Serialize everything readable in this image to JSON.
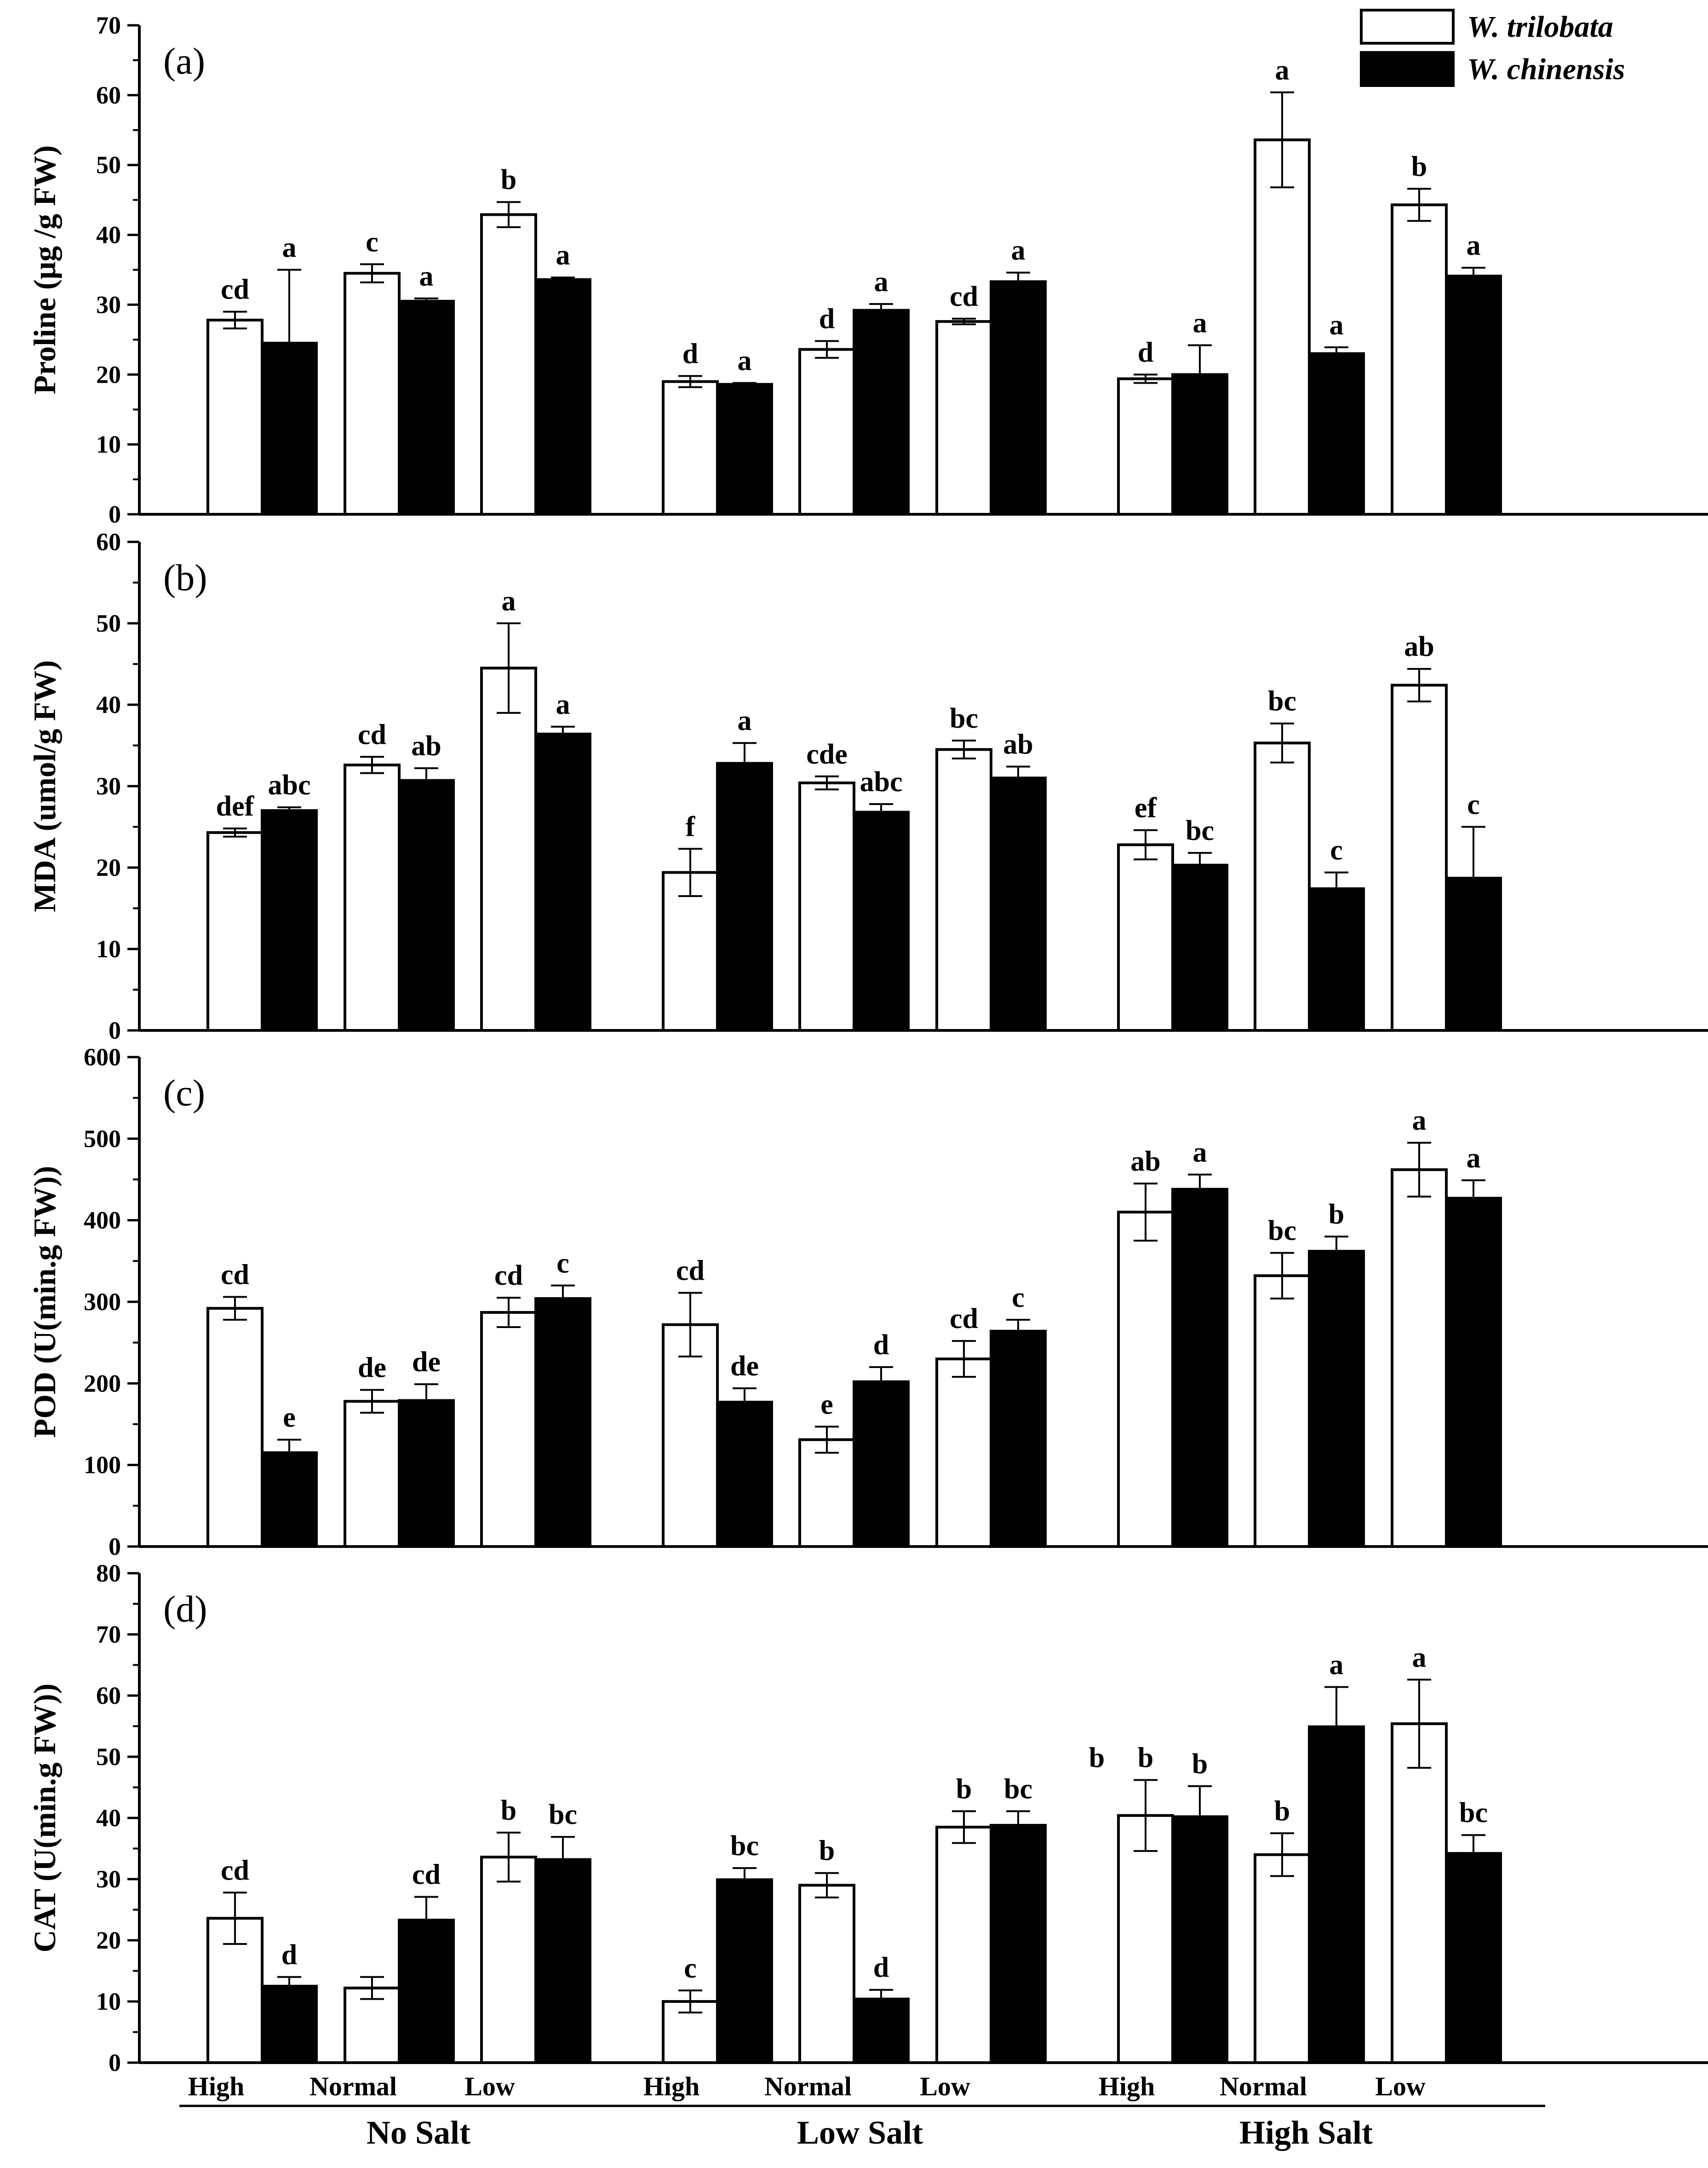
{
  "chart_data": {
    "type": "bar",
    "layout": "four vertically stacked panels sharing x axis",
    "legend": {
      "placement": "top-right",
      "entries": [
        {
          "name": "W. trilobata",
          "fill": "#ffffff"
        },
        {
          "name": "W. chinensis",
          "fill": "#000000"
        }
      ]
    },
    "categories": [
      "High",
      "Normal",
      "Low",
      "High",
      "Normal",
      "Low",
      "High",
      "Normal",
      "Low"
    ],
    "groups": [
      {
        "label": "No Salt",
        "categories": [
          "High",
          "Normal",
          "Low"
        ]
      },
      {
        "label": "Low Salt",
        "categories": [
          "High",
          "Normal",
          "Low"
        ]
      },
      {
        "label": "High Salt",
        "categories": [
          "High",
          "Normal",
          "Low"
        ]
      }
    ],
    "panels": [
      {
        "panel_label": "(a)",
        "ylabel": "Proline (μg /g FW)",
        "ylim": [
          0,
          70
        ],
        "yticks": [
          0,
          10,
          20,
          30,
          40,
          50,
          60,
          70
        ],
        "series": [
          {
            "name": "W. trilobata",
            "values": [
              27.8,
              34.5,
              42.9,
              19.0,
              23.6,
              27.6,
              19.4,
              53.6,
              44.3
            ],
            "errors": [
              1.2,
              1.3,
              1.8,
              0.8,
              1.2,
              0.4,
              0.6,
              6.8,
              2.3
            ],
            "letters": [
              "cd",
              "c",
              "b",
              "d",
              "d",
              "cd",
              "d",
              "a",
              "b"
            ]
          },
          {
            "name": "W. chinensis",
            "values": [
              24.5,
              30.5,
              33.6,
              18.6,
              29.2,
              33.3,
              20.0,
              23.0,
              34.1
            ],
            "errors": [
              10.5,
              0.4,
              0.3,
              0.2,
              0.9,
              1.3,
              4.2,
              0.9,
              1.2
            ],
            "letters": [
              "a",
              "a",
              "a",
              "a",
              "a",
              "a",
              "a",
              "a",
              "a"
            ]
          }
        ]
      },
      {
        "panel_label": "(b)",
        "ylabel": "MDA (umol/g FW)",
        "ylim": [
          0,
          60
        ],
        "yticks": [
          0,
          10,
          20,
          30,
          40,
          50,
          60
        ],
        "series": [
          {
            "name": "W. trilobata",
            "values": [
              24.3,
              32.6,
              44.5,
              19.4,
              30.4,
              34.5,
              22.8,
              35.3,
              42.4
            ],
            "errors": [
              0.5,
              1.0,
              5.5,
              2.9,
              0.8,
              1.1,
              1.8,
              2.4,
              2.0
            ],
            "letters": [
              "def",
              "cd",
              "a",
              "f",
              "cde",
              "bc",
              "ef",
              "bc",
              "ab"
            ]
          },
          {
            "name": "W. chinensis",
            "values": [
              27.0,
              30.7,
              36.4,
              32.8,
              26.8,
              31.0,
              20.3,
              17.4,
              18.7
            ],
            "errors": [
              0.4,
              1.5,
              0.9,
              2.5,
              1.0,
              1.4,
              1.5,
              2.0,
              6.3
            ],
            "letters": [
              "abc",
              "ab",
              "a",
              "a",
              "abc",
              "ab",
              "bc",
              "c",
              "c"
            ]
          }
        ]
      },
      {
        "panel_label": "(c)",
        "ylabel": "POD (U(min.g FW))",
        "ylim": [
          0,
          600
        ],
        "yticks": [
          0,
          100,
          200,
          300,
          400,
          500,
          600
        ],
        "series": [
          {
            "name": "W. trilobata",
            "values": [
              292,
              178,
              287,
              272,
              131,
              230,
              410,
              332,
              462
            ],
            "errors": [
              14,
              14,
              18,
              39,
              16,
              22,
              35,
              28,
              33
            ],
            "letters": [
              "cd",
              "de",
              "cd",
              "cd",
              "e",
              "cd",
              "ab",
              "bc",
              "a"
            ]
          },
          {
            "name": "W. chinensis",
            "values": [
              115,
              179,
              304,
              177,
              202,
              264,
              438,
              362,
              427
            ],
            "errors": [
              16,
              20,
              16,
              17,
              18,
              14,
              18,
              18,
              22
            ],
            "letters": [
              "e",
              "de",
              "c",
              "de",
              "d",
              "c",
              "a",
              "b",
              "a"
            ]
          }
        ]
      },
      {
        "panel_label": "(d)",
        "ylabel": "CAT (U(min.g FW))",
        "ylim": [
          0,
          80
        ],
        "yticks": [
          0,
          10,
          20,
          30,
          40,
          50,
          60,
          70,
          80
        ],
        "series": [
          {
            "name": "W. trilobata",
            "values": [
              23.6,
              12.2,
              33.6,
              10.0,
              29.0,
              38.5,
              40.4,
              34.0,
              55.4
            ],
            "errors": [
              4.2,
              1.8,
              4.0,
              1.8,
              2.0,
              2.6,
              5.8,
              3.5,
              7.2
            ],
            "letters": [
              "cd",
              "",
              "b",
              "c",
              "b",
              "b",
              "b",
              "b",
              "a"
            ]
          },
          {
            "name": "W. chinensis",
            "values": [
              12.5,
              23.3,
              33.2,
              29.9,
              10.4,
              38.8,
              40.2,
              54.9,
              34.2
            ],
            "errors": [
              1.5,
              3.8,
              3.7,
              1.9,
              1.5,
              2.3,
              5.0,
              6.5,
              3.0
            ],
            "letters": [
              "d",
              "cd",
              "bc",
              "bc",
              "d",
              "bc",
              "b",
              "a",
              "bc"
            ]
          }
        ],
        "annotations": [
          {
            "text": "b",
            "near": "High Salt / High, left of W. trilobata bar"
          }
        ]
      }
    ]
  }
}
